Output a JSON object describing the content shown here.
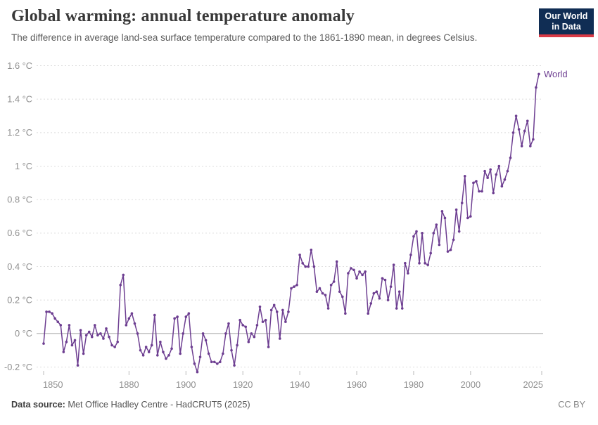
{
  "header": {
    "title": "Global warming: annual temperature anomaly",
    "subtitle": "The difference in average land-sea surface temperature compared to the 1861-1890 mean, in degrees Celsius."
  },
  "logo": {
    "line1": "Our World",
    "line2": "in Data",
    "bg": "#102d54",
    "stripe": "#d93a46"
  },
  "axes": {
    "y_ticks": [
      {
        "value": 1.6,
        "label": "1.6 °C"
      },
      {
        "value": 1.4,
        "label": "1.4 °C"
      },
      {
        "value": 1.2,
        "label": "1.2 °C"
      },
      {
        "value": 1.0,
        "label": "1 °C"
      },
      {
        "value": 0.8,
        "label": "0.8 °C"
      },
      {
        "value": 0.6,
        "label": "0.6 °C"
      },
      {
        "value": 0.4,
        "label": "0.4 °C"
      },
      {
        "value": 0.2,
        "label": "0.2 °C"
      },
      {
        "value": 0.0,
        "label": "0 °C"
      },
      {
        "value": -0.2,
        "label": "-0.2 °C"
      }
    ],
    "x_ticks": [
      {
        "year": 1850,
        "label": "1850"
      },
      {
        "year": 1880,
        "label": "1880"
      },
      {
        "year": 1900,
        "label": "1900"
      },
      {
        "year": 1920,
        "label": "1920"
      },
      {
        "year": 1940,
        "label": "1940"
      },
      {
        "year": 1960,
        "label": "1960"
      },
      {
        "year": 1980,
        "label": "1980"
      },
      {
        "year": 2000,
        "label": "2000"
      },
      {
        "year": 2025,
        "label": "2025"
      }
    ]
  },
  "colors": {
    "line": "#6d3e91",
    "grid": "#dcdcdc",
    "zero_line": "#b0b0b0",
    "tick_mark": "#bbbbbb",
    "axis_text": "#8f8f8f"
  },
  "footer": {
    "source_label": "Data source:",
    "source_value": " Met Office Hadley Centre - HadCRUT5 (2025)",
    "license": "CC BY"
  },
  "chart_data": {
    "type": "line",
    "title": "Global warming: annual temperature anomaly",
    "subtitle": "The difference in average land-sea surface temperature compared to the 1861-1890 mean, in degrees Celsius.",
    "unit": "°C",
    "baseline": "1861-1890 mean",
    "xlabel": "",
    "ylabel": "",
    "xlim": [
      1850,
      2025
    ],
    "ylim": [
      -0.28,
      1.65
    ],
    "grid": "horizontal-dashed",
    "legend": "end-of-line-label",
    "x": [
      1850,
      1851,
      1852,
      1853,
      1854,
      1855,
      1856,
      1857,
      1858,
      1859,
      1860,
      1861,
      1862,
      1863,
      1864,
      1865,
      1866,
      1867,
      1868,
      1869,
      1870,
      1871,
      1872,
      1873,
      1874,
      1875,
      1876,
      1877,
      1878,
      1879,
      1880,
      1881,
      1882,
      1883,
      1884,
      1885,
      1886,
      1887,
      1888,
      1889,
      1890,
      1891,
      1892,
      1893,
      1894,
      1895,
      1896,
      1897,
      1898,
      1899,
      1900,
      1901,
      1902,
      1903,
      1904,
      1905,
      1906,
      1907,
      1908,
      1909,
      1910,
      1911,
      1912,
      1913,
      1914,
      1915,
      1916,
      1917,
      1918,
      1919,
      1920,
      1921,
      1922,
      1923,
      1924,
      1925,
      1926,
      1927,
      1928,
      1929,
      1930,
      1931,
      1932,
      1933,
      1934,
      1935,
      1936,
      1937,
      1938,
      1939,
      1940,
      1941,
      1942,
      1943,
      1944,
      1945,
      1946,
      1947,
      1948,
      1949,
      1950,
      1951,
      1952,
      1953,
      1954,
      1955,
      1956,
      1957,
      1958,
      1959,
      1960,
      1961,
      1962,
      1963,
      1964,
      1965,
      1966,
      1967,
      1968,
      1969,
      1970,
      1971,
      1972,
      1973,
      1974,
      1975,
      1976,
      1977,
      1978,
      1979,
      1980,
      1981,
      1982,
      1983,
      1984,
      1985,
      1986,
      1987,
      1988,
      1989,
      1990,
      1991,
      1992,
      1993,
      1994,
      1995,
      1996,
      1997,
      1998,
      1999,
      2000,
      2001,
      2002,
      2003,
      2004,
      2005,
      2006,
      2007,
      2008,
      2009,
      2010,
      2011,
      2012,
      2013,
      2014,
      2015,
      2016,
      2017,
      2018,
      2019,
      2020,
      2021,
      2022,
      2023,
      2024
    ],
    "series": [
      {
        "name": "World",
        "values": [
          -0.06,
          0.13,
          0.13,
          0.12,
          0.09,
          0.07,
          0.05,
          -0.11,
          -0.05,
          0.05,
          -0.07,
          -0.04,
          -0.19,
          0.02,
          -0.12,
          -0.01,
          0.01,
          -0.02,
          0.05,
          -0.01,
          0.0,
          -0.03,
          0.03,
          -0.02,
          -0.07,
          -0.08,
          -0.05,
          0.29,
          0.35,
          0.05,
          0.09,
          0.12,
          0.06,
          0.0,
          -0.1,
          -0.13,
          -0.08,
          -0.11,
          -0.07,
          0.11,
          -0.13,
          -0.05,
          -0.11,
          -0.15,
          -0.13,
          -0.09,
          0.09,
          0.1,
          -0.12,
          0.0,
          0.1,
          0.12,
          -0.08,
          -0.18,
          -0.23,
          -0.14,
          0.0,
          -0.04,
          -0.12,
          -0.17,
          -0.17,
          -0.18,
          -0.17,
          -0.12,
          0.0,
          0.06,
          -0.1,
          -0.19,
          -0.07,
          0.08,
          0.05,
          0.04,
          -0.05,
          0.0,
          -0.02,
          0.05,
          0.16,
          0.07,
          0.08,
          -0.08,
          0.14,
          0.17,
          0.13,
          -0.03,
          0.14,
          0.07,
          0.13,
          0.27,
          0.28,
          0.29,
          0.47,
          0.42,
          0.4,
          0.4,
          0.5,
          0.4,
          0.25,
          0.27,
          0.24,
          0.23,
          0.15,
          0.29,
          0.31,
          0.43,
          0.25,
          0.22,
          0.12,
          0.36,
          0.39,
          0.38,
          0.33,
          0.37,
          0.35,
          0.37,
          0.12,
          0.18,
          0.24,
          0.25,
          0.21,
          0.33,
          0.32,
          0.2,
          0.28,
          0.41,
          0.15,
          0.25,
          0.15,
          0.42,
          0.36,
          0.47,
          0.58,
          0.61,
          0.42,
          0.6,
          0.42,
          0.41,
          0.48,
          0.6,
          0.65,
          0.53,
          0.73,
          0.69,
          0.49,
          0.5,
          0.56,
          0.74,
          0.61,
          0.78,
          0.94,
          0.69,
          0.7,
          0.9,
          0.91,
          0.85,
          0.85,
          0.97,
          0.93,
          0.98,
          0.84,
          0.95,
          1.0,
          0.88,
          0.92,
          0.97,
          1.05,
          1.2,
          1.3,
          1.22,
          1.12,
          1.21,
          1.27,
          1.12,
          1.16,
          1.47,
          1.55
        ]
      }
    ]
  }
}
